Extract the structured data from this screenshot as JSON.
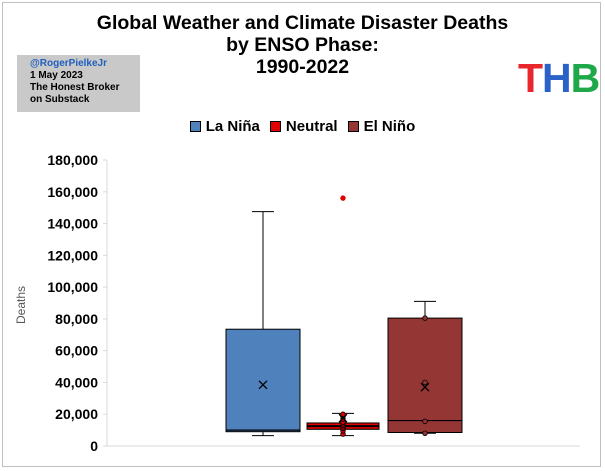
{
  "title_lines": [
    "Global Weather and Climate Disaster Deaths",
    "by ENSO Phase:",
    "1990-2022"
  ],
  "credit": {
    "handle": "@RogerPielkeJr",
    "date": "1 May 2023",
    "line3": "The Honest Broker",
    "line4": "on Substack"
  },
  "logo": {
    "letters": [
      "T",
      "H",
      "B"
    ],
    "colors": [
      "#e8262b",
      "#2a62c9",
      "#1fa84a"
    ]
  },
  "chart_data": {
    "type": "box",
    "title": "Global Weather and Climate Disaster Deaths by ENSO Phase: 1990-2022",
    "ylabel": "Deaths",
    "ylim": [
      0,
      180000
    ],
    "yticks": [
      0,
      20000,
      40000,
      60000,
      80000,
      100000,
      120000,
      140000,
      160000,
      180000
    ],
    "ytick_labels": [
      "0",
      "20,000",
      "40,000",
      "60,000",
      "80,000",
      "100,000",
      "120,000",
      "140,000",
      "160,000",
      "180,000"
    ],
    "grid": false,
    "legend_position": "top",
    "series": [
      {
        "name": "La Niña",
        "color": "#4f81bd",
        "min": 6500,
        "q1": 9000,
        "median": 10000,
        "q3": 73500,
        "max": 147500,
        "mean": 38500,
        "points": [],
        "outliers": []
      },
      {
        "name": "Neutral",
        "color": "#e00000",
        "min": 6500,
        "q1": 10500,
        "median": 12500,
        "q3": 14500,
        "max": 20500,
        "mean": 17500,
        "points": [
          7500,
          9500,
          11000,
          12000,
          13000,
          14000,
          15000,
          17000,
          18500,
          20000
        ],
        "outliers": [
          156000
        ]
      },
      {
        "name": "El Niño",
        "color": "#943634",
        "min": 8000,
        "q1": 8500,
        "median": 16000,
        "q3": 80500,
        "max": 91000,
        "mean": 37000,
        "points": [
          8000,
          15500,
          40000,
          80500
        ],
        "outliers": []
      }
    ]
  }
}
